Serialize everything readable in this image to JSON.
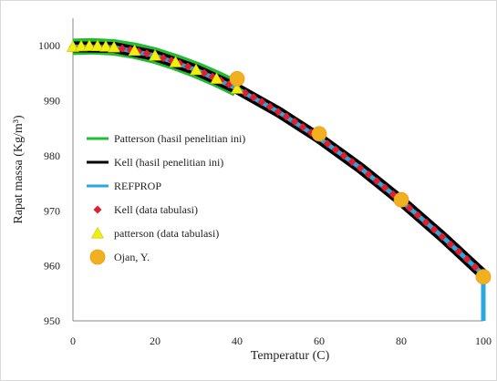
{
  "chart_data": {
    "type": "line",
    "title": "",
    "xlabel": "Temperatur (C)",
    "ylabel": "Rapat massa (Kg/m³)",
    "xlim": [
      0,
      100
    ],
    "ylim": [
      950,
      1005
    ],
    "x_ticks": [
      "0",
      "20",
      "40",
      "60",
      "80",
      "100"
    ],
    "y_ticks": [
      "950",
      "960",
      "970",
      "980",
      "990",
      "1000"
    ],
    "grid": false,
    "legend_position": "left",
    "series": [
      {
        "name": "Patterson (hasil penelitian ini)",
        "kind": "line",
        "color": "#22bb33",
        "x": [
          0,
          5,
          10,
          15,
          20,
          25,
          30,
          35,
          40
        ],
        "y": [
          999.8,
          999.9,
          999.7,
          999.1,
          998.2,
          997.0,
          995.6,
          994.0,
          992.2
        ]
      },
      {
        "name": "Kell (hasil penelitian ini)",
        "kind": "line",
        "color": "#000000",
        "x": [
          0,
          10,
          20,
          30,
          40,
          50,
          60,
          70,
          80,
          90,
          100
        ],
        "y": [
          999.8,
          999.7,
          998.2,
          995.6,
          992.2,
          988.0,
          983.2,
          977.8,
          971.8,
          965.3,
          958.4
        ]
      },
      {
        "name": "REFPROP",
        "kind": "line",
        "color": "#29a8e0",
        "x": [
          0,
          10,
          20,
          30,
          40,
          50,
          60,
          70,
          80,
          90,
          100,
          100
        ],
        "y": [
          999.8,
          999.7,
          998.2,
          995.6,
          992.2,
          988.0,
          983.2,
          977.8,
          971.8,
          965.3,
          958.4,
          950
        ]
      },
      {
        "name": "Kell (data tabulasi)",
        "kind": "marker",
        "marker": "diamond",
        "color": "#e02030",
        "x": [
          0,
          2,
          4,
          6,
          8,
          10,
          12,
          14,
          16,
          18,
          20,
          22,
          24,
          26,
          28,
          30,
          32,
          34,
          36,
          38,
          40,
          42,
          44,
          46,
          48,
          50,
          52,
          54,
          56,
          58,
          60,
          62,
          64,
          66,
          68,
          70,
          72,
          74,
          76,
          78,
          80,
          82,
          84,
          86,
          88,
          90,
          92,
          94,
          96,
          98,
          100
        ],
        "y": [
          999.8,
          999.9,
          999.97,
          999.94,
          999.85,
          999.7,
          999.5,
          999.25,
          998.95,
          998.6,
          998.2,
          997.77,
          997.3,
          996.8,
          996.23,
          995.65,
          995.03,
          994.37,
          993.68,
          992.96,
          992.2,
          991.4,
          990.6,
          989.8,
          988.9,
          988.0,
          987.1,
          986.2,
          985.2,
          984.2,
          983.2,
          982.2,
          981.1,
          980.0,
          978.9,
          977.8,
          976.6,
          975.4,
          974.2,
          973.0,
          971.8,
          970.5,
          969.2,
          967.9,
          966.6,
          965.3,
          963.9,
          962.6,
          961.2,
          959.8,
          958.4
        ]
      },
      {
        "name": "patterson (data tabulasi)",
        "kind": "marker",
        "marker": "triangle",
        "color": "#f2ee10",
        "x": [
          0,
          2,
          4,
          6,
          8,
          10,
          15,
          20,
          25,
          30,
          35,
          40
        ],
        "y": [
          999.8,
          999.9,
          999.97,
          999.94,
          999.85,
          999.7,
          999.1,
          998.2,
          997.0,
          995.6,
          994.0,
          992.2
        ]
      },
      {
        "name": "Ojan, Y.",
        "kind": "marker",
        "marker": "circle",
        "color": "#f0b020",
        "x": [
          40,
          60,
          80,
          100
        ],
        "y": [
          994.0,
          984.0,
          972.0,
          958.0
        ]
      }
    ]
  }
}
